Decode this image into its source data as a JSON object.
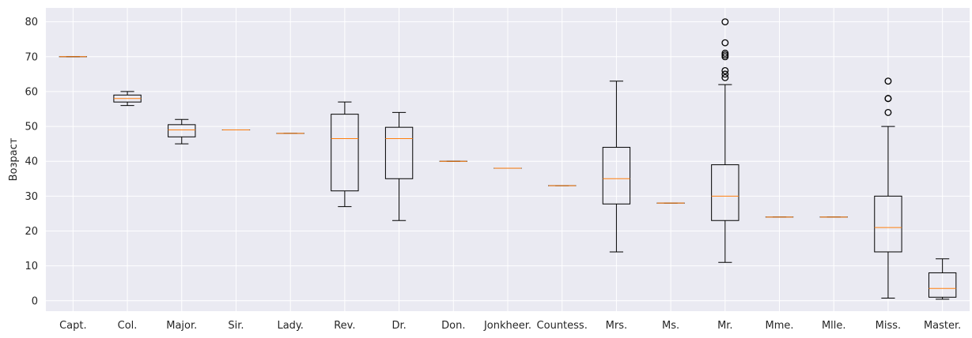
{
  "chart_data": {
    "type": "boxplot",
    "ylabel": "Возраст",
    "ylim": [
      -3,
      84
    ],
    "yticks": [
      0,
      10,
      20,
      30,
      40,
      50,
      60,
      70,
      80
    ],
    "grid": true,
    "categories": [
      "Capt.",
      "Col.",
      "Major.",
      "Sir.",
      "Lady.",
      "Rev.",
      "Dr.",
      "Don.",
      "Jonkheer.",
      "Countess.",
      "Mrs.",
      "Ms.",
      "Mr.",
      "Mme.",
      "Mlle.",
      "Miss.",
      "Master."
    ],
    "boxes": [
      {
        "whislo": 70,
        "q1": 70,
        "med": 70,
        "q3": 70,
        "whishi": 70,
        "fliers": []
      },
      {
        "whislo": 56,
        "q1": 57,
        "med": 58,
        "q3": 59,
        "whishi": 60,
        "fliers": []
      },
      {
        "whislo": 45,
        "q1": 47,
        "med": 49,
        "q3": 50.5,
        "whishi": 52,
        "fliers": []
      },
      {
        "whislo": 49,
        "q1": 49,
        "med": 49,
        "q3": 49,
        "whishi": 49,
        "fliers": []
      },
      {
        "whislo": 48,
        "q1": 48,
        "med": 48,
        "q3": 48,
        "whishi": 48,
        "fliers": []
      },
      {
        "whislo": 27,
        "q1": 31.5,
        "med": 46.5,
        "q3": 53.5,
        "whishi": 57,
        "fliers": []
      },
      {
        "whislo": 23,
        "q1": 35,
        "med": 46.5,
        "q3": 49.75,
        "whishi": 54,
        "fliers": []
      },
      {
        "whislo": 40,
        "q1": 40,
        "med": 40,
        "q3": 40,
        "whishi": 40,
        "fliers": []
      },
      {
        "whislo": 38,
        "q1": 38,
        "med": 38,
        "q3": 38,
        "whishi": 38,
        "fliers": []
      },
      {
        "whislo": 33,
        "q1": 33,
        "med": 33,
        "q3": 33,
        "whishi": 33,
        "fliers": []
      },
      {
        "whislo": 14,
        "q1": 27.75,
        "med": 35,
        "q3": 44,
        "whishi": 63,
        "fliers": []
      },
      {
        "whislo": 28,
        "q1": 28,
        "med": 28,
        "q3": 28,
        "whishi": 28,
        "fliers": []
      },
      {
        "whislo": 11,
        "q1": 23,
        "med": 30,
        "q3": 39,
        "whishi": 62,
        "fliers": [
          64,
          65,
          66,
          70,
          70.5,
          71,
          74,
          80
        ]
      },
      {
        "whislo": 24,
        "q1": 24,
        "med": 24,
        "q3": 24,
        "whishi": 24,
        "fliers": []
      },
      {
        "whislo": 24,
        "q1": 24,
        "med": 24,
        "q3": 24,
        "whishi": 24,
        "fliers": []
      },
      {
        "whislo": 0.75,
        "q1": 14,
        "med": 21,
        "q3": 30,
        "whishi": 50,
        "fliers": [
          54,
          58,
          58,
          63
        ]
      },
      {
        "whislo": 0.42,
        "q1": 1,
        "med": 3.5,
        "q3": 8,
        "whishi": 12,
        "fliers": []
      }
    ]
  }
}
